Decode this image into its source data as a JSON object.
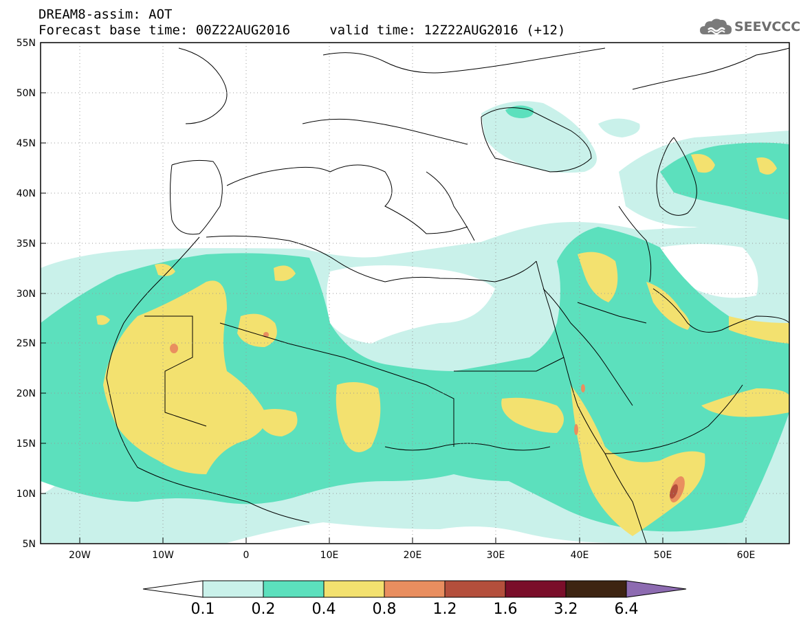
{
  "header": {
    "line1": "DREAM8-assim: AOT",
    "line2": "Forecast base time: 00Z22AUG2016     valid time: 12Z22AUG2016 (+12)"
  },
  "logo": {
    "text": "SEEVCCC",
    "icon": "cloud-icon"
  },
  "map": {
    "lat_labels": [
      "55N",
      "50N",
      "45N",
      "40N",
      "35N",
      "30N",
      "25N",
      "20N",
      "15N",
      "10N",
      "5N"
    ],
    "lon_labels": [
      "20W",
      "10W",
      "0",
      "10E",
      "20E",
      "30E",
      "40E",
      "50E",
      "60E"
    ]
  },
  "colorbar": {
    "labels": [
      "0.1",
      "0.2",
      "0.4",
      "0.8",
      "1.2",
      "1.6",
      "3.2",
      "6.4"
    ],
    "colors": [
      "#ffffff",
      "#c9f1ea",
      "#5ce0bd",
      "#f3e16f",
      "#e98e5f",
      "#b44f3c",
      "#7a0e2a",
      "#3d2412",
      "#8d6bb1"
    ]
  },
  "legend_colors": {
    "low": "#c9f1ea",
    "mid": "#5ce0bd",
    "high": "#f3e16f",
    "very_high": "#e98e5f",
    "extreme": "#b44f3c"
  }
}
